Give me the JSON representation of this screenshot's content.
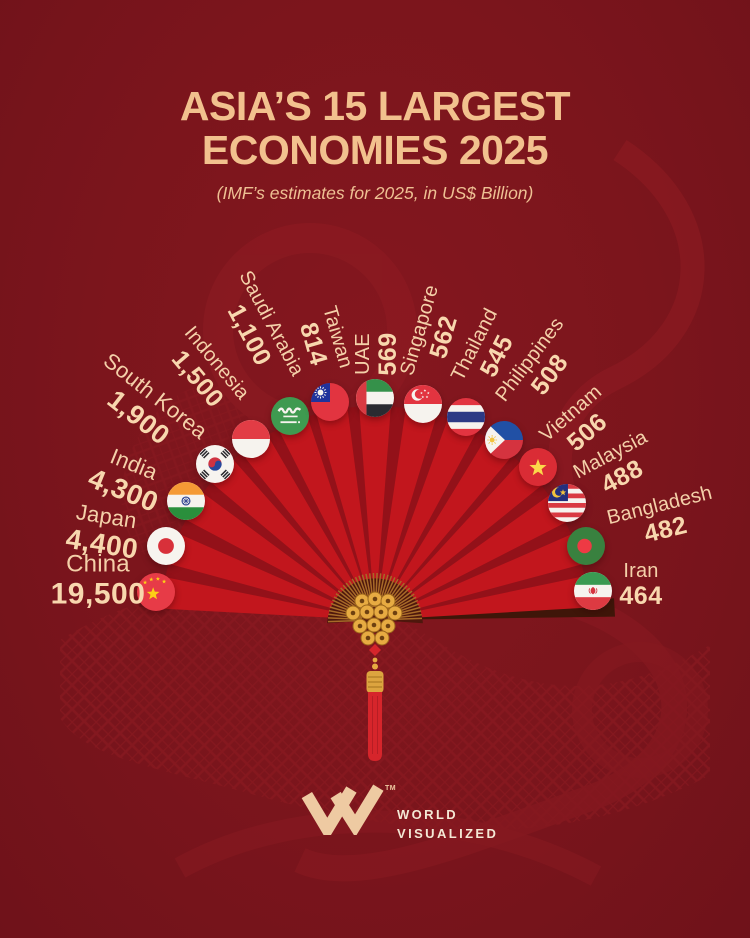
{
  "poster": {
    "title_line1": "ASIA’S 15 LARGEST",
    "title_line2": "ECONOMIES 2025",
    "subtitle": "(IMF’s estimates for 2025, in US$ Billion)"
  },
  "countries": [
    {
      "name": "China",
      "value": "19,500",
      "flag": "china"
    },
    {
      "name": "Japan",
      "value": "4,400",
      "flag": "japan"
    },
    {
      "name": "India",
      "value": "4,300",
      "flag": "india"
    },
    {
      "name": "South Korea",
      "value": "1,900",
      "flag": "south_korea"
    },
    {
      "name": "Indonesia",
      "value": "1,500",
      "flag": "indonesia"
    },
    {
      "name": "Saudi Arabia",
      "value": "1,100",
      "flag": "saudi_arabia"
    },
    {
      "name": "Taiwan",
      "value": "814",
      "flag": "taiwan"
    },
    {
      "name": "UAE",
      "value": "569",
      "flag": "uae"
    },
    {
      "name": "Singapore",
      "value": "562",
      "flag": "singapore"
    },
    {
      "name": "Thailand",
      "value": "545",
      "flag": "thailand"
    },
    {
      "name": "Philippines",
      "value": "508",
      "flag": "philippines"
    },
    {
      "name": "Vietnam",
      "value": "506",
      "flag": "vietnam"
    },
    {
      "name": "Malaysia",
      "value": "488",
      "flag": "malaysia"
    },
    {
      "name": "Bangladesh",
      "value": "482",
      "flag": "bangladesh"
    },
    {
      "name": "Iran",
      "value": "464",
      "flag": "iran"
    }
  ],
  "chart_data": {
    "type": "bar",
    "title": "ASIA’S 15 LARGEST ECONOMIES 2025",
    "subtitle": "(IMF’s estimates for 2025, in US$ Billion)",
    "unit": "US$ Billion",
    "categories": [
      "China",
      "Japan",
      "India",
      "South Korea",
      "Indonesia",
      "Saudi Arabia",
      "Taiwan",
      "UAE",
      "Singapore",
      "Thailand",
      "Philippines",
      "Vietnam",
      "Malaysia",
      "Bangladesh",
      "Iran"
    ],
    "values": [
      19500,
      4400,
      4300,
      1900,
      1500,
      1100,
      814,
      569,
      562,
      545,
      508,
      506,
      488,
      482,
      464
    ],
    "layout": "radial folding-fan arc, largest economy at lower-left tip sweeping to smallest at lower-right tip, circular flag icon at each fan-blade tip"
  },
  "footer": {
    "trademark": "TM",
    "brand_line1": "WORLD",
    "brand_line2": "VISUALIZED"
  },
  "colors": {
    "background": "#7b151c",
    "watermark": "#8f1c23",
    "title": "#f2c18e",
    "label_text": "#f8d7ae",
    "fan_bright": "#c2161d",
    "fan_dark": "#931119",
    "guard_brown": "#3f1609",
    "gold": "#e7ab42",
    "tassel_red": "#d6252b",
    "logo_peach": "#eecaa2"
  }
}
